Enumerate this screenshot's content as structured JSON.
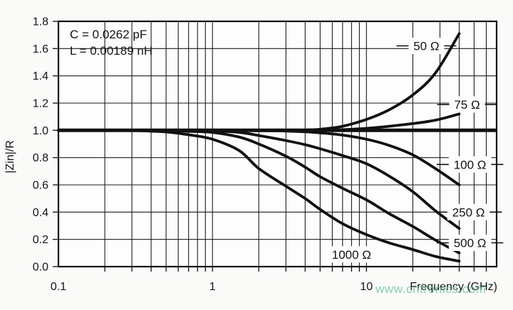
{
  "watermark": {
    "text": "www.cntronics.com",
    "color": "rgba(105,195,150,0.8)"
  },
  "chart_data": {
    "type": "line",
    "title": "",
    "xlabel": "Frequency (GHz)",
    "ylabel": "|Zin|/R",
    "x_scale": "log",
    "x_min": 0.1,
    "x_max": 70,
    "y_min": 0.0,
    "y_max": 1.8,
    "y_tick_step": 0.2,
    "grid": "on",
    "x_major_ticks": [
      0.1,
      1,
      10
    ],
    "x_tick_labels": [
      "0.1",
      "1",
      "10"
    ],
    "y_tick_labels": [
      "1.8",
      "1.6",
      "1.4",
      "1.2",
      "1.0",
      "0.8",
      "0.6",
      "0.4",
      "0.2",
      "0.0"
    ],
    "annotation": {
      "line1": "C = 0.0262 pF",
      "line2": "L = 0.00189 nH"
    },
    "reference_line": {
      "y": 1.0,
      "x_from": 0.1,
      "x_to": 70
    },
    "x": [
      0.1,
      0.2,
      0.3,
      0.5,
      0.7,
      1,
      1.5,
      2,
      3,
      4,
      5,
      7,
      10,
      14,
      20,
      28,
      40
    ],
    "series": [
      {
        "name": "50 Ω",
        "values": [
          1,
          1,
          1,
          1,
          1,
          1,
          1,
          1,
          1,
          1.003,
          1.008,
          1.03,
          1.08,
          1.15,
          1.26,
          1.42,
          1.71
        ],
        "label": {
          "x": 24.5,
          "y": 1.62,
          "dash": true
        }
      },
      {
        "name": "75 Ω",
        "values": [
          1,
          1,
          1,
          1,
          1,
          1,
          1,
          1,
          1,
          1,
          1,
          1.005,
          1.015,
          1.03,
          1.05,
          1.075,
          1.12
        ],
        "label": {
          "x": 45,
          "y": 1.19,
          "dash": true
        }
      },
      {
        "name": "100 Ω",
        "values": [
          1,
          1,
          1,
          1,
          1,
          1,
          0.999,
          0.998,
          0.995,
          0.99,
          0.982,
          0.965,
          0.935,
          0.89,
          0.82,
          0.72,
          0.6
        ],
        "label": {
          "x": 47,
          "y": 0.75,
          "dash": true
        }
      },
      {
        "name": "250 Ω",
        "values": [
          1,
          1,
          1,
          1,
          0.999,
          0.995,
          0.985,
          0.962,
          0.925,
          0.895,
          0.865,
          0.815,
          0.755,
          0.665,
          0.55,
          0.41,
          0.28
        ],
        "label": {
          "x": 46,
          "y": 0.4,
          "dash": true
        }
      },
      {
        "name": "500 Ω",
        "values": [
          1,
          1,
          1,
          0.998,
          0.993,
          0.985,
          0.95,
          0.9,
          0.81,
          0.73,
          0.66,
          0.575,
          0.49,
          0.39,
          0.295,
          0.195,
          0.1
        ],
        "label": {
          "x": 47,
          "y": 0.175,
          "dash": true
        }
      },
      {
        "name": "1000 Ω",
        "values": [
          1,
          1,
          0.999,
          0.988,
          0.968,
          0.935,
          0.85,
          0.72,
          0.59,
          0.5,
          0.42,
          0.315,
          0.235,
          0.175,
          0.125,
          0.075,
          0.04
        ],
        "label": {
          "x": 8,
          "y": 0.09,
          "dash": false
        }
      }
    ],
    "ink_color": "#111111",
    "grid_color": "#1c1c1c",
    "plot_bg": "#fdfdfd"
  }
}
